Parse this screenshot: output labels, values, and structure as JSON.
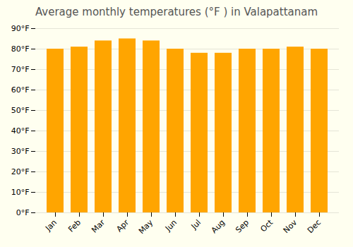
{
  "chart_data": {
    "type": "bar",
    "title": "Average monthly temperatures (°F ) in Valapattanam",
    "categories": [
      "Jan",
      "Feb",
      "Mar",
      "Apr",
      "May",
      "Jun",
      "Jul",
      "Aug",
      "Sep",
      "Oct",
      "Nov",
      "Dec"
    ],
    "values": [
      80,
      81,
      84,
      85,
      84,
      80,
      78,
      78,
      80,
      80,
      81,
      80
    ],
    "color": "#FFA500",
    "ylim": [
      0,
      90
    ],
    "yticks": [
      {
        "value": 0,
        "label": "0°F"
      },
      {
        "value": 10,
        "label": "10°F"
      },
      {
        "value": 20,
        "label": "20°F"
      },
      {
        "value": 30,
        "label": "30°F"
      },
      {
        "value": 40,
        "label": "40°F"
      },
      {
        "value": 50,
        "label": "50°F"
      },
      {
        "value": 60,
        "label": "60°F"
      },
      {
        "value": 70,
        "label": "70°F"
      },
      {
        "value": 80,
        "label": "80°F"
      },
      {
        "value": 90,
        "label": "90°F"
      }
    ],
    "grid": true
  }
}
